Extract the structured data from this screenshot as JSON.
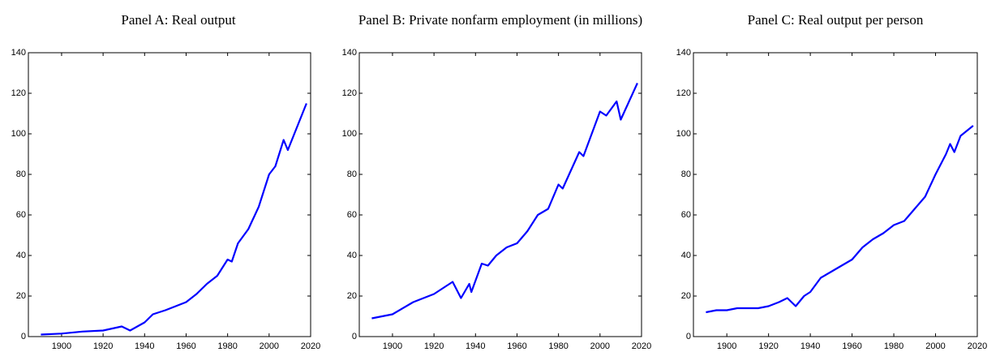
{
  "chart_data": [
    {
      "type": "line",
      "title": "Panel A: Real output",
      "color": "#0000ff",
      "x": [
        1890,
        1900,
        1910,
        1920,
        1929,
        1933,
        1940,
        1944,
        1950,
        1960,
        1965,
        1970,
        1975,
        1980,
        1982,
        1985,
        1990,
        1995,
        2000,
        2003,
        2007,
        2009,
        2018
      ],
      "values": [
        1,
        1.5,
        2.5,
        3,
        5,
        3,
        7,
        11,
        13,
        17,
        21,
        26,
        30,
        38,
        37,
        46,
        53,
        64,
        80,
        84,
        97,
        92,
        115
      ],
      "xlim": [
        1884,
        2020
      ],
      "ylim": [
        0,
        140
      ],
      "xticks": [
        1900,
        1920,
        1940,
        1960,
        1980,
        2000,
        2020
      ],
      "yticks": [
        0,
        20,
        40,
        60,
        80,
        100,
        120,
        140
      ],
      "grid": false
    },
    {
      "type": "line",
      "title": "Panel B: Private nonfarm employment (in millions)",
      "color": "#0000ff",
      "x": [
        1890,
        1900,
        1910,
        1920,
        1929,
        1933,
        1937,
        1938,
        1943,
        1946,
        1950,
        1955,
        1960,
        1965,
        1970,
        1975,
        1980,
        1982,
        1990,
        1992,
        2000,
        2003,
        2008,
        2010,
        2018
      ],
      "values": [
        9,
        11,
        17,
        21,
        27,
        19,
        26,
        22,
        36,
        35,
        40,
        44,
        46,
        52,
        60,
        63,
        75,
        73,
        91,
        89,
        111,
        109,
        116,
        107,
        125
      ],
      "xlim": [
        1884,
        2020
      ],
      "ylim": [
        0,
        140
      ],
      "xticks": [
        1900,
        1920,
        1940,
        1960,
        1980,
        2000,
        2020
      ],
      "yticks": [
        0,
        20,
        40,
        60,
        80,
        100,
        120,
        140
      ],
      "grid": false
    },
    {
      "type": "line",
      "title": "Panel C: Real output per person",
      "color": "#0000ff",
      "x": [
        1890,
        1895,
        1900,
        1905,
        1910,
        1915,
        1920,
        1925,
        1929,
        1933,
        1937,
        1940,
        1945,
        1950,
        1955,
        1960,
        1965,
        1970,
        1975,
        1980,
        1985,
        1990,
        1995,
        2000,
        2005,
        2007,
        2009,
        2012,
        2018
      ],
      "values": [
        12,
        13,
        13,
        14,
        14,
        14,
        15,
        17,
        19,
        15,
        20,
        22,
        29,
        32,
        35,
        38,
        44,
        48,
        51,
        55,
        57,
        63,
        69,
        80,
        90,
        95,
        91,
        99,
        104
      ],
      "xlim": [
        1884,
        2020
      ],
      "ylim": [
        0,
        140
      ],
      "xticks": [
        1900,
        1920,
        1940,
        1960,
        1980,
        2000,
        2020
      ],
      "yticks": [
        0,
        20,
        40,
        60,
        80,
        100,
        120,
        140
      ],
      "grid": false
    }
  ]
}
